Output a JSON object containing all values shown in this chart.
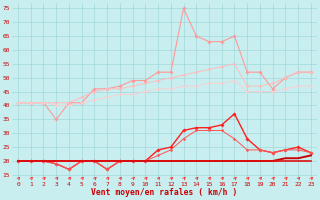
{
  "x": [
    0,
    1,
    2,
    3,
    4,
    5,
    6,
    7,
    8,
    9,
    10,
    11,
    12,
    13,
    14,
    15,
    16,
    17,
    18,
    19,
    20,
    21,
    22,
    23
  ],
  "line_rafale_max": [
    41,
    41,
    41,
    35,
    41,
    41,
    46,
    46,
    47,
    49,
    49,
    52,
    52,
    75,
    65,
    63,
    63,
    65,
    52,
    52,
    46,
    50,
    52,
    52
  ],
  "line_rafale_moy1": [
    41,
    41,
    41,
    41,
    41,
    43,
    45,
    46,
    46,
    47,
    48,
    49,
    50,
    51,
    52,
    53,
    54,
    55,
    47,
    47,
    48,
    50,
    52,
    52
  ],
  "line_rafale_moy2": [
    41,
    41,
    41,
    40,
    40,
    41,
    42,
    43,
    44,
    44,
    45,
    46,
    46,
    47,
    47,
    48,
    48,
    49,
    45,
    45,
    45,
    46,
    47,
    47
  ],
  "line_vent_max": [
    20,
    20,
    20,
    19,
    17,
    20,
    20,
    17,
    20,
    20,
    20,
    24,
    25,
    31,
    32,
    32,
    33,
    37,
    28,
    24,
    23,
    24,
    25,
    23
  ],
  "line_vent_moy1": [
    20,
    20,
    20,
    19,
    17,
    20,
    20,
    17,
    20,
    20,
    20,
    22,
    24,
    28,
    31,
    31,
    31,
    28,
    24,
    24,
    23,
    24,
    24,
    23
  ],
  "line_vent_flat1": [
    20,
    20,
    20,
    20,
    20,
    20,
    20,
    20,
    20,
    20,
    20,
    20,
    20,
    20,
    20,
    20,
    20,
    20,
    20,
    20,
    20,
    21,
    21,
    22
  ],
  "line_vent_flat2": [
    20,
    20,
    20,
    20,
    20,
    20,
    20,
    20,
    20,
    20,
    20,
    20,
    20,
    20,
    20,
    20,
    20,
    20,
    20,
    20,
    20,
    20,
    20,
    20
  ],
  "xlabel": "Vent moyen/en rafales ( km/h )",
  "yticks": [
    15,
    20,
    25,
    30,
    35,
    40,
    45,
    50,
    55,
    60,
    65,
    70,
    75
  ],
  "xticks": [
    0,
    1,
    2,
    3,
    4,
    5,
    6,
    7,
    8,
    9,
    10,
    11,
    12,
    13,
    14,
    15,
    16,
    17,
    18,
    19,
    20,
    21,
    22,
    23
  ],
  "bg_color": "#c8eef0",
  "grid_color": "#a0d8dc"
}
